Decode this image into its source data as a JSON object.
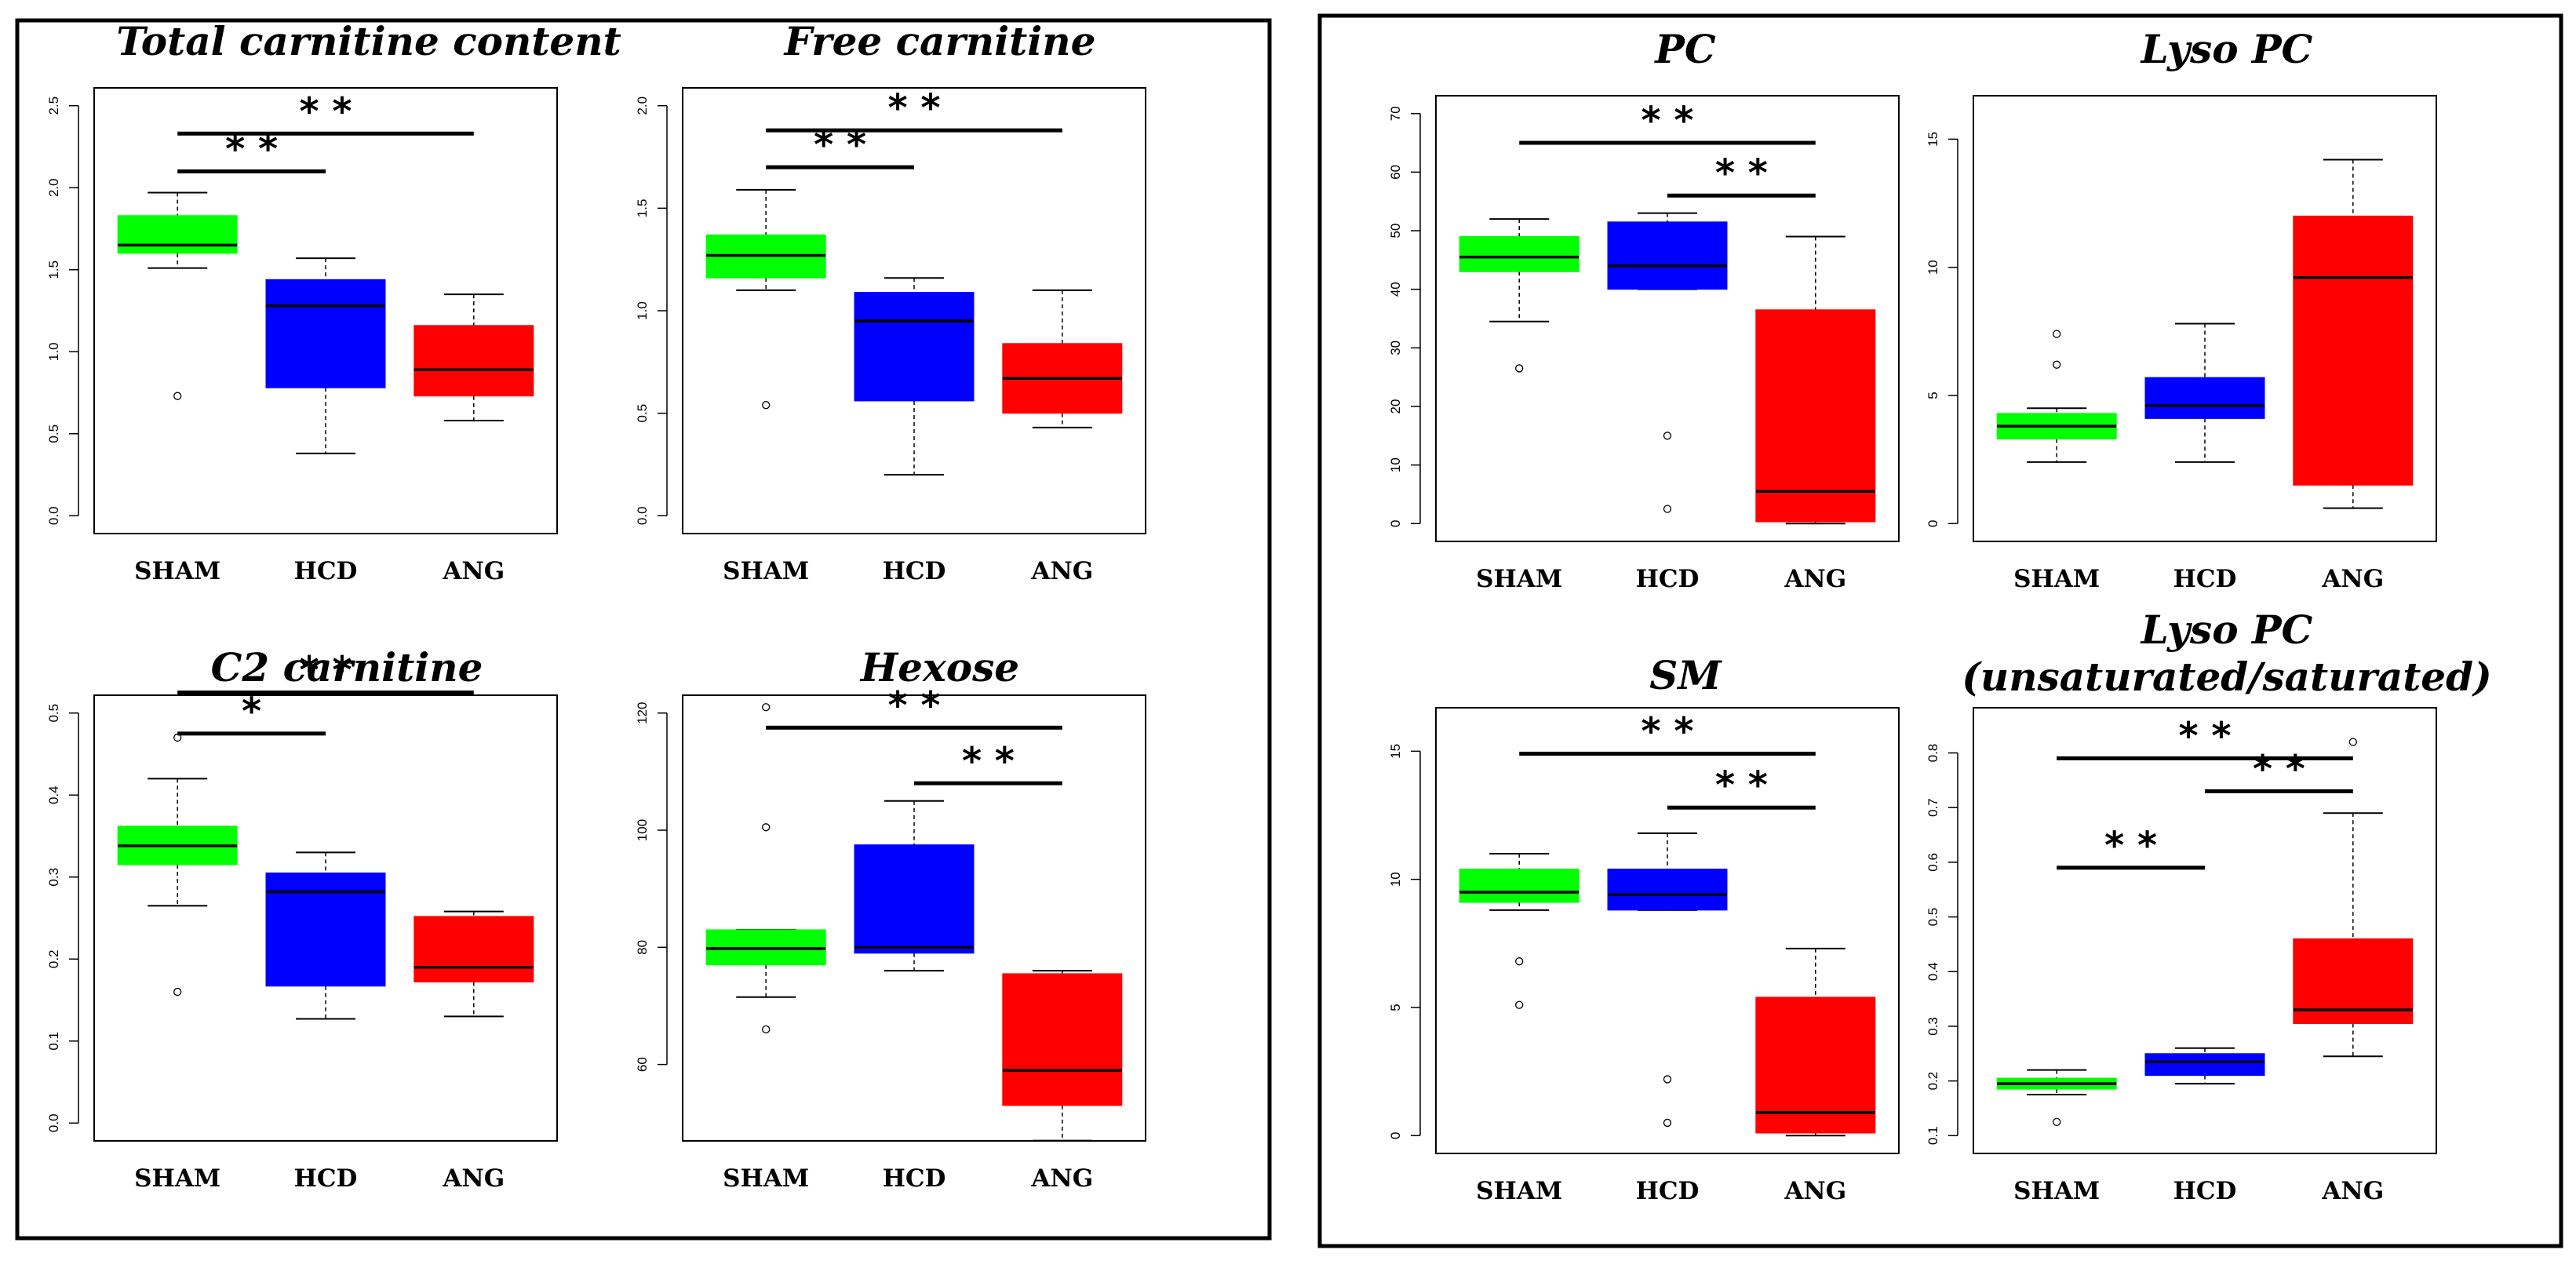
{
  "figure": {
    "colors": {
      "SHAM": "#00ff00",
      "HCD": "#0000ff",
      "ANG": "#ff0000"
    }
  },
  "chart_data": [
    {
      "type": "boxplot",
      "title": [
        "Total carnitine content"
      ],
      "categories": [
        "SHAM",
        "HCD",
        "ANG"
      ],
      "ylim": [
        0,
        2.5
      ],
      "yticks": [
        "0.0",
        "0.5",
        "1.0",
        "1.5",
        "2.0",
        "2.5"
      ],
      "yticks_values": [
        0,
        0.5,
        1.0,
        1.5,
        2.0,
        2.5
      ],
      "boxes": [
        {
          "min": 1.51,
          "q1": 1.6,
          "median": 1.65,
          "q3": 1.83,
          "max": 1.97,
          "outliers": [
            0.73
          ]
        },
        {
          "min": 0.38,
          "q1": 0.78,
          "median": 1.28,
          "q3": 1.44,
          "max": 1.57,
          "outliers": []
        },
        {
          "min": 0.58,
          "q1": 0.73,
          "median": 0.89,
          "q3": 1.16,
          "max": 1.35,
          "outliers": []
        }
      ],
      "significance": [
        {
          "from": "SHAM",
          "to": "ANG",
          "y": 2.33,
          "label": "* *"
        },
        {
          "from": "SHAM",
          "to": "HCD",
          "y": 2.1,
          "label": "* *"
        }
      ]
    },
    {
      "type": "boxplot",
      "title": [
        "Free carnitine"
      ],
      "categories": [
        "SHAM",
        "HCD",
        "ANG"
      ],
      "ylim": [
        0,
        2.0
      ],
      "yticks": [
        "0.0",
        "0.5",
        "1.0",
        "1.5",
        "2.0"
      ],
      "yticks_values": [
        0,
        0.5,
        1.0,
        1.5,
        2.0
      ],
      "boxes": [
        {
          "min": 1.1,
          "q1": 1.16,
          "median": 1.27,
          "q3": 1.37,
          "max": 1.59,
          "outliers": [
            0.54
          ]
        },
        {
          "min": 0.2,
          "q1": 0.56,
          "median": 0.95,
          "q3": 1.09,
          "max": 1.16,
          "outliers": []
        },
        {
          "min": 0.43,
          "q1": 0.5,
          "median": 0.67,
          "q3": 0.84,
          "max": 1.1,
          "outliers": []
        }
      ],
      "significance": [
        {
          "from": "SHAM",
          "to": "ANG",
          "y": 1.88,
          "label": "* *"
        },
        {
          "from": "SHAM",
          "to": "HCD",
          "y": 1.7,
          "label": "* *"
        }
      ]
    },
    {
      "type": "boxplot",
      "title": [
        "C2 carnitine"
      ],
      "categories": [
        "SHAM",
        "HCD",
        "ANG"
      ],
      "ylim": [
        0,
        0.5
      ],
      "yticks": [
        "0.0",
        "0.1",
        "0.2",
        "0.3",
        "0.4",
        "0.5"
      ],
      "yticks_values": [
        0,
        0.1,
        0.2,
        0.3,
        0.4,
        0.5
      ],
      "boxes": [
        {
          "min": 0.265,
          "q1": 0.315,
          "median": 0.338,
          "q3": 0.362,
          "max": 0.42,
          "outliers": [
            0.16,
            0.47
          ]
        },
        {
          "min": 0.127,
          "q1": 0.167,
          "median": 0.282,
          "q3": 0.305,
          "max": 0.33,
          "outliers": []
        },
        {
          "min": 0.13,
          "q1": 0.172,
          "median": 0.19,
          "q3": 0.252,
          "max": 0.258,
          "outliers": []
        }
      ],
      "significance": [
        {
          "from": "SHAM",
          "to": "ANG",
          "y": 0.525,
          "label": "* *"
        },
        {
          "from": "SHAM",
          "to": "HCD",
          "y": 0.475,
          "label": "*"
        }
      ]
    },
    {
      "type": "boxplot",
      "title": [
        "Hexose"
      ],
      "categories": [
        "SHAM",
        "HCD",
        "ANG"
      ],
      "ylim": [
        50,
        120
      ],
      "yticks": [
        "60",
        "80",
        "100",
        "120"
      ],
      "yticks_values": [
        60,
        80,
        100,
        120
      ],
      "boxes": [
        {
          "min": 71.5,
          "q1": 77,
          "median": 79.8,
          "q3": 83,
          "max": 83,
          "outliers": [
            66,
            100.5,
            121
          ]
        },
        {
          "min": 76,
          "q1": 79,
          "median": 80,
          "q3": 97.5,
          "max": 105,
          "outliers": []
        },
        {
          "min": 47,
          "q1": 53,
          "median": 59,
          "q3": 75.5,
          "max": 76,
          "outliers": []
        }
      ],
      "significance": [
        {
          "from": "SHAM",
          "to": "ANG",
          "y": 117.5,
          "label": "* *"
        },
        {
          "from": "HCD",
          "to": "ANG",
          "y": 108,
          "label": "* *"
        }
      ]
    },
    {
      "type": "boxplot",
      "title": [
        "PC"
      ],
      "categories": [
        "SHAM",
        "HCD",
        "ANG"
      ],
      "ylim": [
        0,
        70
      ],
      "yticks": [
        "0",
        "10",
        "20",
        "30",
        "40",
        "50",
        "60",
        "70"
      ],
      "yticks_values": [
        0,
        10,
        20,
        30,
        40,
        50,
        60,
        70
      ],
      "boxes": [
        {
          "min": 34.5,
          "q1": 43,
          "median": 45.5,
          "q3": 49,
          "max": 52,
          "outliers": [
            26.5
          ]
        },
        {
          "min": 40,
          "q1": 40,
          "median": 44,
          "q3": 51.5,
          "max": 53,
          "outliers": [
            15,
            2.5
          ]
        },
        {
          "min": 0,
          "q1": 0.3,
          "median": 5.5,
          "q3": 36.5,
          "max": 49,
          "outliers": []
        }
      ],
      "significance": [
        {
          "from": "SHAM",
          "to": "ANG",
          "y": 65,
          "label": "* *"
        },
        {
          "from": "HCD",
          "to": "ANG",
          "y": 56,
          "label": "* *"
        }
      ]
    },
    {
      "type": "boxplot",
      "title": [
        "Lyso PC"
      ],
      "categories": [
        "SHAM",
        "HCD",
        "ANG"
      ],
      "ylim": [
        0,
        16
      ],
      "yticks": [
        "0",
        "5",
        "10",
        "15"
      ],
      "yticks_values": [
        0,
        5,
        10,
        15
      ],
      "boxes": [
        {
          "min": 2.4,
          "q1": 3.3,
          "median": 3.8,
          "q3": 4.3,
          "max": 4.5,
          "outliers": [
            6.2,
            7.4
          ]
        },
        {
          "min": 2.4,
          "q1": 4.1,
          "median": 4.6,
          "q3": 5.7,
          "max": 7.8,
          "outliers": []
        },
        {
          "min": 0.6,
          "q1": 1.5,
          "median": 9.6,
          "q3": 12,
          "max": 14.2,
          "outliers": []
        }
      ],
      "significance": []
    },
    {
      "type": "boxplot",
      "title": [
        "SM"
      ],
      "categories": [
        "SHAM",
        "HCD",
        "ANG"
      ],
      "ylim": [
        0,
        16
      ],
      "yticks": [
        "0",
        "5",
        "10",
        "15"
      ],
      "yticks_values": [
        0,
        5,
        10,
        15
      ],
      "boxes": [
        {
          "min": 8.8,
          "q1": 9.1,
          "median": 9.5,
          "q3": 10.4,
          "max": 11,
          "outliers": [
            6.8,
            5.1
          ]
        },
        {
          "min": 8.8,
          "q1": 8.8,
          "median": 9.4,
          "q3": 10.4,
          "max": 11.8,
          "outliers": [
            2.2,
            0.5
          ]
        },
        {
          "min": 0,
          "q1": 0.1,
          "median": 0.9,
          "q3": 5.4,
          "max": 7.3,
          "outliers": []
        }
      ],
      "significance": [
        {
          "from": "SHAM",
          "to": "ANG",
          "y": 14.9,
          "label": "* *"
        },
        {
          "from": "HCD",
          "to": "ANG",
          "y": 12.8,
          "label": "* *"
        }
      ]
    },
    {
      "type": "boxplot",
      "title": [
        "Lyso PC",
        "(unsaturated/saturated)"
      ],
      "categories": [
        "SHAM",
        "HCD",
        "ANG"
      ],
      "ylim": [
        0.1,
        0.85
      ],
      "yticks": [
        "0.1",
        "0.2",
        "0.3",
        "0.4",
        "0.5",
        "0.6",
        "0.7",
        "0.8"
      ],
      "yticks_values": [
        0.1,
        0.2,
        0.3,
        0.4,
        0.5,
        0.6,
        0.7,
        0.8
      ],
      "boxes": [
        {
          "min": 0.175,
          "q1": 0.185,
          "median": 0.195,
          "q3": 0.205,
          "max": 0.22,
          "outliers": [
            0.125
          ]
        },
        {
          "min": 0.195,
          "q1": 0.21,
          "median": 0.235,
          "q3": 0.25,
          "max": 0.26,
          "outliers": []
        },
        {
          "min": 0.245,
          "q1": 0.305,
          "median": 0.33,
          "q3": 0.46,
          "max": 0.69,
          "outliers": [
            0.82
          ]
        }
      ],
      "significance": [
        {
          "from": "SHAM",
          "to": "ANG",
          "y": 0.79,
          "label": "* *"
        },
        {
          "from": "HCD",
          "to": "ANG",
          "y": 0.73,
          "label": "* *"
        },
        {
          "from": "SHAM",
          "to": "HCD",
          "y": 0.59,
          "label": "* *"
        }
      ]
    }
  ]
}
